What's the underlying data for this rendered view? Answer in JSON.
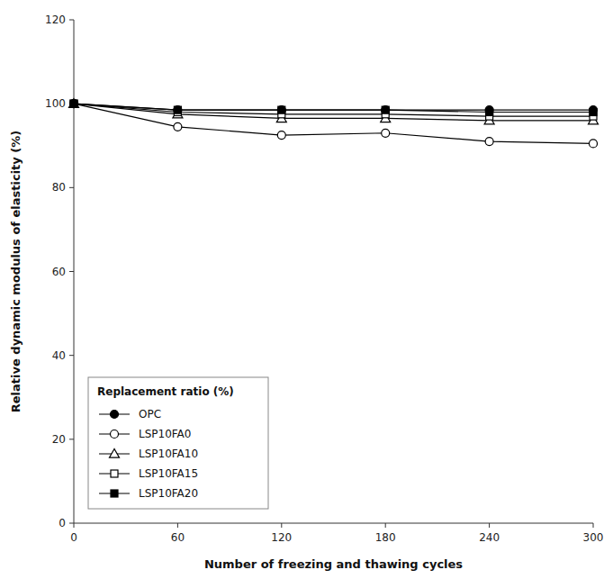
{
  "chart_data": {
    "type": "line",
    "xlabel": "Number of freezing and thawing cycles",
    "ylabel": "Relative dynamic modulus of elasticity (%)",
    "legend_title": "Replacement ratio (%)",
    "legend": "lower left",
    "grid": false,
    "x": [
      0,
      60,
      120,
      180,
      240,
      300
    ],
    "xlim": [
      0,
      300
    ],
    "xticks": [
      0,
      60,
      120,
      180,
      240,
      300
    ],
    "ylim": [
      0,
      120
    ],
    "yticks": [
      0,
      20,
      40,
      60,
      80,
      100,
      120
    ],
    "series": [
      {
        "name": "OPC",
        "color": "black",
        "marker": "circle",
        "values": [
          100,
          98.5,
          98.5,
          98.5,
          98.5,
          98.5
        ]
      },
      {
        "name": "LSP10FA0",
        "color": "black",
        "marker": "circle-open",
        "values": [
          100,
          94.5,
          92.5,
          93.0,
          91.0,
          90.5
        ]
      },
      {
        "name": "LSP10FA10",
        "color": "black",
        "marker": "triangle-open",
        "values": [
          100,
          97.5,
          96.5,
          96.5,
          96.0,
          96.0
        ]
      },
      {
        "name": "LSP10FA15",
        "color": "black",
        "marker": "square-open",
        "values": [
          100,
          98.0,
          97.5,
          97.5,
          97.0,
          97.0
        ]
      },
      {
        "name": "LSP10FA20",
        "color": "black",
        "marker": "square",
        "values": [
          100,
          98.5,
          98.5,
          98.5,
          98.0,
          98.0
        ]
      }
    ]
  }
}
